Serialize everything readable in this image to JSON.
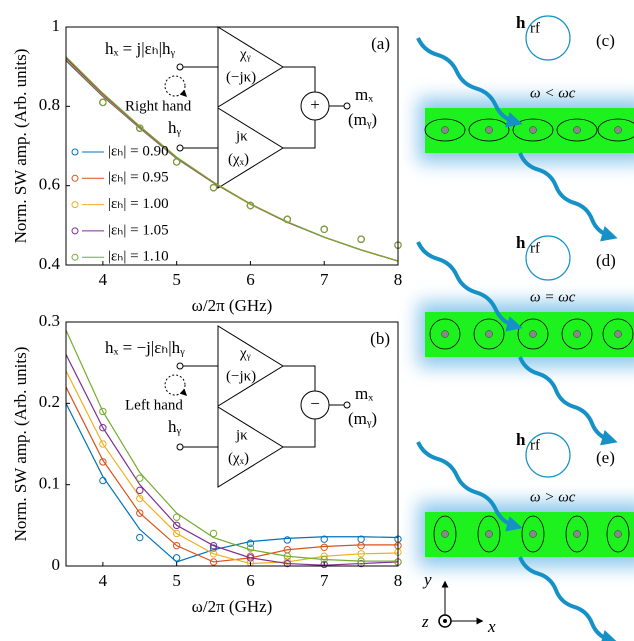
{
  "chart_data": [
    {
      "type": "line",
      "panel": "(a)",
      "xlabel": "ω/2π (GHz)",
      "ylabel": "Norm. SW amp. (Arb. units)",
      "xlim": [
        3.5,
        8
      ],
      "ylim": [
        0.4,
        1
      ],
      "xticks": [
        4,
        5,
        6,
        7,
        8
      ],
      "yticks": [
        0.4,
        0.6,
        0.8,
        1
      ],
      "legend": true,
      "series": [
        {
          "name": "|εₕ| = 0.90",
          "color": "#0072bd",
          "x": [
            3.5,
            4,
            4.5,
            5,
            5.5,
            6,
            6.5,
            7,
            7.5,
            8
          ],
          "values": [
            0.915,
            0.825,
            0.745,
            0.668,
            0.607,
            0.553,
            0.508,
            0.47,
            0.438,
            0.41
          ],
          "marker_x": [
            4,
            4.5,
            5,
            5.5,
            6,
            6.5,
            7,
            7.5,
            8
          ],
          "marker_values": [
            0.81,
            0.745,
            0.66,
            0.595,
            0.55,
            0.515,
            0.49,
            0.465,
            0.45
          ]
        },
        {
          "name": "|εₕ| = 0.95",
          "color": "#d95319",
          "x": [
            3.5,
            4,
            4.5,
            5,
            5.5,
            6,
            6.5,
            7,
            7.5,
            8
          ],
          "values": [
            0.918,
            0.827,
            0.746,
            0.669,
            0.607,
            0.553,
            0.508,
            0.47,
            0.438,
            0.41
          ],
          "marker_x": [
            4,
            4.5,
            5,
            5.5,
            6,
            6.5,
            7,
            7.5,
            8
          ],
          "marker_values": [
            0.81,
            0.745,
            0.66,
            0.595,
            0.55,
            0.515,
            0.49,
            0.465,
            0.45
          ]
        },
        {
          "name": "|εₕ| = 1.00",
          "color": "#edb120",
          "x": [
            3.5,
            4,
            4.5,
            5,
            5.5,
            6,
            6.5,
            7,
            7.5,
            8
          ],
          "values": [
            0.92,
            0.829,
            0.747,
            0.67,
            0.608,
            0.553,
            0.508,
            0.47,
            0.438,
            0.41
          ],
          "marker_x": [
            4,
            4.5,
            5,
            5.5,
            6,
            6.5,
            7,
            7.5,
            8
          ],
          "marker_values": [
            0.81,
            0.745,
            0.66,
            0.595,
            0.55,
            0.515,
            0.49,
            0.465,
            0.45
          ]
        },
        {
          "name": "|εₕ| = 1.05",
          "color": "#7e2f8e",
          "x": [
            3.5,
            4,
            4.5,
            5,
            5.5,
            6,
            6.5,
            7,
            7.5,
            8
          ],
          "values": [
            0.922,
            0.831,
            0.748,
            0.671,
            0.608,
            0.554,
            0.508,
            0.47,
            0.438,
            0.41
          ],
          "marker_x": [
            4,
            4.5,
            5,
            5.5,
            6,
            6.5,
            7,
            7.5,
            8
          ],
          "marker_values": [
            0.81,
            0.745,
            0.66,
            0.595,
            0.55,
            0.515,
            0.49,
            0.465,
            0.45
          ]
        },
        {
          "name": "|εₕ| = 1.10",
          "color": "#77ac30",
          "x": [
            3.5,
            4,
            4.5,
            5,
            5.5,
            6,
            6.5,
            7,
            7.5,
            8
          ],
          "values": [
            0.925,
            0.833,
            0.75,
            0.672,
            0.609,
            0.554,
            0.509,
            0.47,
            0.438,
            0.41
          ],
          "marker_x": [
            4,
            4.5,
            5,
            5.5,
            6,
            6.5,
            7,
            7.5,
            8
          ],
          "marker_values": [
            0.81,
            0.745,
            0.66,
            0.595,
            0.55,
            0.515,
            0.49,
            0.465,
            0.45
          ]
        }
      ],
      "diagram": {
        "input_x": "hₓ = j|εₕ|hᵧ",
        "input_y": "hᵧ",
        "hand": "Right hand",
        "upper_block": [
          "χᵧ",
          "(−jκ)"
        ],
        "lower_block": [
          "jκ",
          "(χₓ)"
        ],
        "operator": "+",
        "output": [
          "mₓ",
          "(mᵧ)"
        ]
      }
    },
    {
      "type": "line",
      "panel": "(b)",
      "xlabel": "ω/2π (GHz)",
      "ylabel": "Norm. SW amp. (Arb. units)",
      "xlim": [
        3.5,
        8
      ],
      "ylim": [
        0,
        0.3
      ],
      "xticks": [
        4,
        5,
        6,
        7,
        8
      ],
      "yticks": [
        0,
        0.1,
        0.2,
        0.3
      ],
      "legend": false,
      "series": [
        {
          "name": "|εₕ| = 0.90",
          "color": "#0072bd",
          "x": [
            3.5,
            4,
            4.5,
            5,
            5.5,
            6,
            6.5,
            7,
            7.5,
            8
          ],
          "values": [
            0.2,
            0.11,
            0.045,
            0.005,
            0.02,
            0.03,
            0.034,
            0.036,
            0.036,
            0.035
          ],
          "marker_x": [
            4,
            4.5,
            5,
            5.5,
            6,
            6.5,
            7,
            7.5,
            8
          ],
          "marker_values": [
            0.105,
            0.035,
            0.01,
            0.022,
            0.028,
            0.032,
            0.033,
            0.033,
            0.033
          ]
        },
        {
          "name": "|εₕ| = 0.95",
          "color": "#d95319",
          "x": [
            3.5,
            4,
            4.5,
            5,
            5.5,
            6,
            6.5,
            7,
            7.5,
            8
          ],
          "values": [
            0.22,
            0.13,
            0.065,
            0.025,
            0.005,
            0.01,
            0.02,
            0.024,
            0.026,
            0.026
          ],
          "marker_x": [
            4,
            4.5,
            5,
            5.5,
            6,
            6.5,
            7,
            7.5,
            8
          ],
          "marker_values": [
            0.128,
            0.065,
            0.025,
            0.005,
            0.012,
            0.02,
            0.023,
            0.025,
            0.025
          ]
        },
        {
          "name": "|εₕ| = 1.00",
          "color": "#edb120",
          "x": [
            3.5,
            4,
            4.5,
            5,
            5.5,
            6,
            6.5,
            7,
            7.5,
            8
          ],
          "values": [
            0.24,
            0.15,
            0.085,
            0.04,
            0.015,
            0.003,
            0.005,
            0.012,
            0.015,
            0.016
          ],
          "marker_x": [
            4,
            4.5,
            5,
            5.5,
            6,
            6.5,
            7,
            7.5,
            8
          ],
          "marker_values": [
            0.15,
            0.083,
            0.04,
            0.015,
            0.004,
            0.006,
            0.012,
            0.015,
            0.017
          ]
        },
        {
          "name": "|εₕ| = 1.05",
          "color": "#7e2f8e",
          "x": [
            3.5,
            4,
            4.5,
            5,
            5.5,
            6,
            6.5,
            7,
            7.5,
            8
          ],
          "values": [
            0.26,
            0.17,
            0.1,
            0.05,
            0.025,
            0.01,
            0.003,
            0.001,
            0.003,
            0.005
          ],
          "marker_x": [
            4,
            4.5,
            5,
            5.5,
            6,
            6.5,
            7,
            7.5,
            8
          ],
          "marker_values": [
            0.17,
            0.093,
            0.05,
            0.025,
            0.01,
            0.003,
            0.002,
            0.003,
            0.005
          ]
        },
        {
          "name": "|εₕ| = 1.10",
          "color": "#77ac30",
          "x": [
            3.5,
            4,
            4.5,
            5,
            5.5,
            6,
            6.5,
            7,
            7.5,
            8
          ],
          "values": [
            0.29,
            0.19,
            0.115,
            0.065,
            0.035,
            0.02,
            0.012,
            0.008,
            0.006,
            0.006
          ],
          "marker_x": [
            4,
            4.5,
            5,
            5.5,
            6,
            6.5,
            7,
            7.5,
            8
          ],
          "marker_values": [
            0.19,
            0.108,
            0.06,
            0.04,
            0.022,
            0.012,
            0.008,
            0.006,
            0.005
          ]
        }
      ],
      "diagram": {
        "input_x": "hₓ = −j|εₕ|hᵧ",
        "input_y": "hᵧ",
        "hand": "Left hand",
        "upper_block": [
          "χᵧ",
          "(−jκ)"
        ],
        "lower_block": [
          "jκ",
          "(χₓ)"
        ],
        "operator": "−",
        "output": [
          "mₓ",
          "(mᵧ)"
        ]
      }
    }
  ],
  "panels": [
    {
      "label": "(c)",
      "field": "h",
      "field_sub": "rf",
      "condition": "ω < ωc"
    },
    {
      "label": "(d)",
      "field": "h",
      "field_sub": "rf",
      "condition": "ω = ωc"
    },
    {
      "label": "(e)",
      "field": "h",
      "field_sub": "rf",
      "condition": "ω > ωc"
    }
  ],
  "coordinates": {
    "y": "y",
    "z": "z",
    "x": "x"
  }
}
